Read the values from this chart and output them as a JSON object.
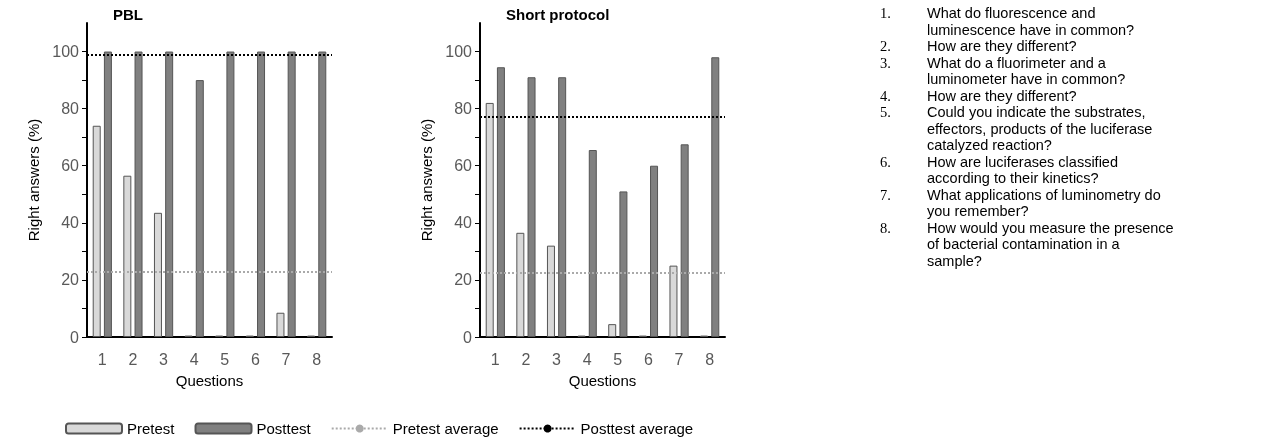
{
  "chart_data": [
    {
      "type": "bar",
      "title": "PBL",
      "xlabel": "Questions",
      "ylabel": "Right answers (%)",
      "categories": [
        "1",
        "2",
        "3",
        "4",
        "5",
        "6",
        "7",
        "8"
      ],
      "series": [
        {
          "name": "Pretest",
          "color": "#d9d9d9",
          "values": [
            74,
            56.5,
            43.5,
            0.5,
            0.5,
            0.5,
            8.5,
            0.5
          ]
        },
        {
          "name": "Posttest",
          "color": "#808080",
          "values": [
            100,
            100,
            100,
            90,
            100,
            100,
            100,
            100
          ]
        }
      ],
      "ref_lines": [
        {
          "axis": "y",
          "value": 23,
          "label": "Pretest average",
          "color": "#aaaaaa",
          "line_style": "dotted"
        },
        {
          "axis": "y",
          "value": 99,
          "label": "Posttest average",
          "color": "#000000",
          "line_style": "dotted"
        }
      ],
      "ylim": [
        0,
        110
      ],
      "yticks": [
        0,
        {
          "value": 10,
          "label": null
        },
        20,
        {
          "value": 30,
          "label": null
        },
        40,
        {
          "value": 50,
          "label": null
        },
        60,
        {
          "value": 70,
          "label": null
        },
        80,
        {
          "value": 90,
          "label": null
        },
        100
      ],
      "grid": false,
      "legend": "bottom"
    },
    {
      "type": "bar",
      "title": "Short protocol",
      "xlabel": "Questions",
      "ylabel": "Right answers (%)",
      "categories": [
        "1",
        "2",
        "3",
        "4",
        "5",
        "6",
        "7",
        "8"
      ],
      "series": [
        {
          "color": "#d9d9d9",
          "values": [
            82,
            36.5,
            32,
            0.5,
            4.5,
            0.5,
            25,
            0.5
          ]
        },
        {
          "color": "#808080",
          "values": [
            94.5,
            91,
            91,
            65.5,
            51,
            60,
            67.5,
            98
          ]
        }
      ],
      "ref_lines": [
        {
          "axis": "y",
          "value": 22.5,
          "color": "#aaaaaa",
          "line_style": "dotted"
        },
        {
          "axis": "y",
          "value": 77,
          "color": "#000000",
          "line_style": "dotted"
        }
      ],
      "ylim": [
        0,
        110
      ],
      "yticks": [
        0,
        {
          "value": 10,
          "label": null
        },
        20,
        {
          "value": 30,
          "label": null
        },
        40,
        {
          "value": 50,
          "label": null
        },
        60,
        {
          "value": 70,
          "label": null
        },
        80,
        {
          "value": 90,
          "label": null
        },
        100
      ],
      "grid": false,
      "legend": false
    },
    {
      "type": "other",
      "annotations": [
        "1. What do fluorescence and luminescence have in common?",
        "2. How are they different?",
        "3. What do a fluorimeter and a luminometer have in common?",
        "4. How are they different?",
        "5. Could you indicate the substrates, effectors, products of the luciferase catalyzed reaction?",
        "6. How are luciferases classified according to their kinetics?",
        "7. What applications of luminometry do you remember?",
        "8. How would you measure the presence of bacterial contamination in a sample?"
      ]
    }
  ]
}
